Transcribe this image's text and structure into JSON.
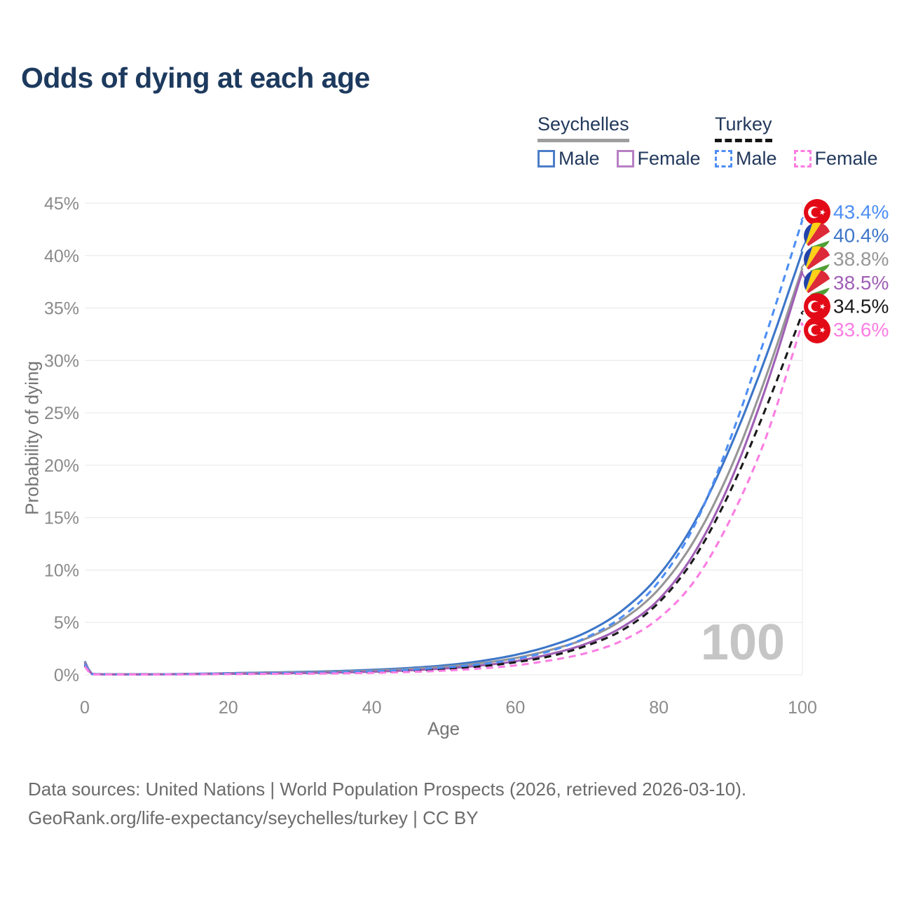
{
  "title": "Odds of dying at each age",
  "legend": {
    "groups": [
      {
        "id": "seychelles",
        "label": "Seychelles",
        "line_style": "solid",
        "line_color": "#9e9e9e",
        "items": [
          {
            "id": "seychelles-male",
            "label": "Male",
            "swatch_color": "#4b7dc8",
            "dashed": false
          },
          {
            "id": "seychelles-female",
            "label": "Female",
            "swatch_color": "#b77fc4",
            "dashed": false
          }
        ]
      },
      {
        "id": "turkey",
        "label": "Turkey",
        "line_style": "dashed",
        "line_color": "#161616",
        "items": [
          {
            "id": "turkey-male",
            "label": "Male",
            "swatch_color": "#4d8ef5",
            "dashed": true
          },
          {
            "id": "turkey-female",
            "label": "Female",
            "swatch_color": "#fb7de2",
            "dashed": true
          }
        ]
      }
    ]
  },
  "chart_data": {
    "type": "line",
    "title": "Odds of dying at each age",
    "xlabel": "Age",
    "ylabel": "Probability of dying",
    "xlim": [
      0,
      100
    ],
    "ylim": [
      0,
      45
    ],
    "x_ticks": [
      0,
      20,
      40,
      60,
      80,
      100
    ],
    "y_ticks": [
      0,
      5,
      10,
      15,
      20,
      25,
      30,
      35,
      40,
      45
    ],
    "y_tick_suffix": "%",
    "grid": "horizontal",
    "legend_position": "top-right",
    "watermark": "100",
    "x": [
      0,
      1,
      5,
      10,
      15,
      20,
      25,
      30,
      35,
      40,
      45,
      50,
      55,
      60,
      65,
      70,
      75,
      80,
      85,
      90,
      95,
      100
    ],
    "series": [
      {
        "id": "seychelles-male",
        "name": "Seychelles Male",
        "country": "Seychelles",
        "sex": "Male",
        "flag": "seychelles",
        "color": "#3d76c8",
        "dashed": false,
        "end_label": "40.4%",
        "end_value": 40.4,
        "values": [
          1.3,
          0.1,
          0.05,
          0.06,
          0.1,
          0.16,
          0.22,
          0.28,
          0.36,
          0.48,
          0.65,
          0.9,
          1.3,
          1.9,
          2.8,
          4.1,
          6.2,
          9.5,
          14.6,
          21.8,
          30.5,
          40.4
        ]
      },
      {
        "id": "seychelles-total",
        "name": "Seychelles Both sexes",
        "country": "Seychelles",
        "sex": "Both",
        "flag": "seychelles",
        "color": "#969696",
        "dashed": false,
        "end_label": "38.8%",
        "end_value": 38.8,
        "values": [
          1.2,
          0.09,
          0.05,
          0.06,
          0.09,
          0.14,
          0.19,
          0.24,
          0.3,
          0.4,
          0.55,
          0.77,
          1.1,
          1.6,
          2.4,
          3.5,
          5.3,
          8.2,
          12.9,
          19.7,
          28.6,
          38.8
        ]
      },
      {
        "id": "seychelles-female",
        "name": "Seychelles Female",
        "country": "Seychelles",
        "sex": "Female",
        "flag": "seychelles",
        "color": "#a05fb5",
        "dashed": false,
        "end_label": "38.5%",
        "end_value": 38.5,
        "values": [
          1.1,
          0.08,
          0.04,
          0.05,
          0.07,
          0.1,
          0.13,
          0.17,
          0.22,
          0.3,
          0.42,
          0.6,
          0.88,
          1.3,
          2.0,
          3.0,
          4.6,
          7.2,
          11.7,
          18.5,
          27.6,
          38.5
        ]
      },
      {
        "id": "turkey-total",
        "name": "Turkey Both sexes",
        "country": "Turkey",
        "sex": "Both",
        "flag": "turkey",
        "color": "#1a1a1a",
        "dashed": true,
        "end_label": "34.5%",
        "end_value": 34.5,
        "values": [
          0.9,
          0.07,
          0.04,
          0.05,
          0.06,
          0.09,
          0.12,
          0.15,
          0.2,
          0.27,
          0.38,
          0.55,
          0.8,
          1.2,
          1.8,
          2.8,
          4.3,
          6.9,
          11.2,
          17.6,
          25.6,
          34.5
        ]
      },
      {
        "id": "turkey-male",
        "name": "Turkey Male",
        "country": "Turkey",
        "sex": "Male",
        "flag": "turkey",
        "color": "#4d8ef5",
        "dashed": true,
        "end_label": "43.4%",
        "end_value": 43.4,
        "values": [
          1.0,
          0.08,
          0.04,
          0.05,
          0.08,
          0.12,
          0.15,
          0.19,
          0.25,
          0.34,
          0.48,
          0.7,
          1.0,
          1.5,
          2.3,
          3.6,
          5.6,
          8.9,
          14.3,
          22.6,
          32.6,
          43.4
        ]
      },
      {
        "id": "turkey-female",
        "name": "Turkey Female",
        "country": "Turkey",
        "sex": "Female",
        "flag": "turkey",
        "color": "#fb7de2",
        "dashed": true,
        "end_label": "33.6%",
        "end_value": 33.6,
        "values": [
          0.8,
          0.06,
          0.03,
          0.04,
          0.05,
          0.07,
          0.09,
          0.11,
          0.14,
          0.19,
          0.27,
          0.4,
          0.6,
          0.9,
          1.4,
          2.1,
          3.3,
          5.4,
          9.0,
          14.9,
          22.8,
          33.6
        ]
      }
    ]
  },
  "footer": {
    "line1": "Data sources: United Nations | World Population Prospects (2026, retrieved 2026-03-10).",
    "line2": "GeoRank.org/life-expectancy/seychelles/turkey | CC BY"
  }
}
